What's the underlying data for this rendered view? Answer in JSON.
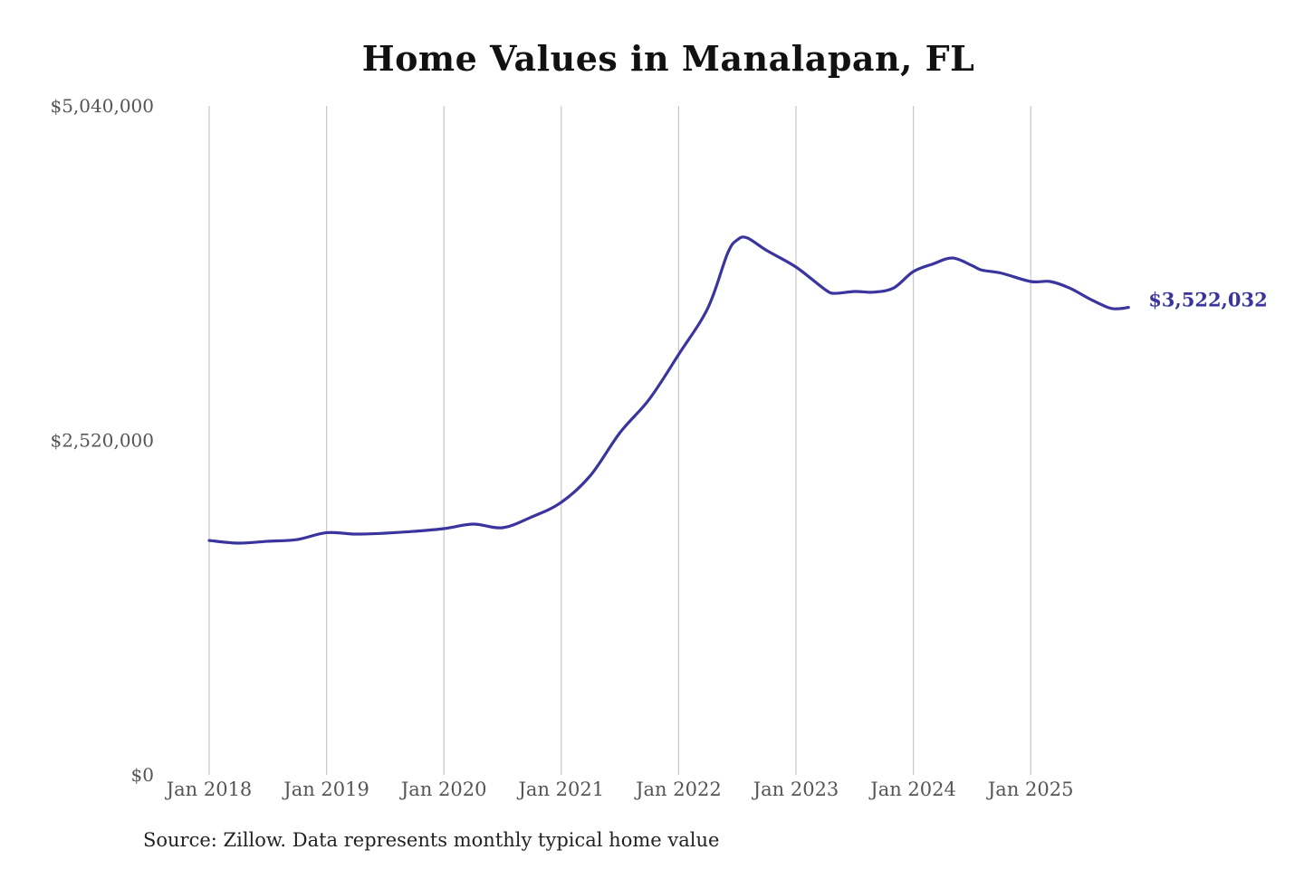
{
  "chart_data": {
    "type": "line",
    "title": "Home Values in Manalapan, FL",
    "source": "Source: Zillow. Data represents monthly typical home value",
    "xlabel": "",
    "ylabel": "",
    "ylim": [
      0,
      5040000
    ],
    "y_ticks": [
      {
        "value": 0,
        "label": "$0"
      },
      {
        "value": 2520000,
        "label": "$2,520,000"
      },
      {
        "value": 5040000,
        "label": "$5,040,000"
      }
    ],
    "x_ticks": [
      {
        "date": "2018-01",
        "label": "Jan 2018"
      },
      {
        "date": "2019-01",
        "label": "Jan 2019"
      },
      {
        "date": "2020-01",
        "label": "Jan 2020"
      },
      {
        "date": "2021-01",
        "label": "Jan 2021"
      },
      {
        "date": "2022-01",
        "label": "Jan 2022"
      },
      {
        "date": "2023-01",
        "label": "Jan 2023"
      },
      {
        "date": "2024-01",
        "label": "Jan 2024"
      },
      {
        "date": "2025-01",
        "label": "Jan 2025"
      }
    ],
    "grid": "vertical lines at year ticks",
    "line_color": "#3a349e",
    "end_label": "$3,522,032",
    "series": [
      {
        "points": [
          [
            "2018-01",
            1766000
          ],
          [
            "2018-04",
            1746000
          ],
          [
            "2018-07",
            1760000
          ],
          [
            "2018-10",
            1773000
          ],
          [
            "2019-01",
            1825000
          ],
          [
            "2019-04",
            1814000
          ],
          [
            "2019-07",
            1821000
          ],
          [
            "2019-10",
            1835000
          ],
          [
            "2020-01",
            1855000
          ],
          [
            "2020-04",
            1889000
          ],
          [
            "2020-07",
            1862000
          ],
          [
            "2020-10",
            1944000
          ],
          [
            "2021-01",
            2053000
          ],
          [
            "2021-04",
            2257000
          ],
          [
            "2021-07",
            2578000
          ],
          [
            "2021-10",
            2830000
          ],
          [
            "2022-01",
            3167000
          ],
          [
            "2022-04",
            3519000
          ],
          [
            "2022-06",
            3928000
          ],
          [
            "2022-07",
            4031000
          ],
          [
            "2022-08",
            4046000
          ],
          [
            "2022-10",
            3951000
          ],
          [
            "2023-01",
            3826000
          ],
          [
            "2023-04",
            3655000
          ],
          [
            "2023-05",
            3628000
          ],
          [
            "2023-07",
            3642000
          ],
          [
            "2023-09",
            3637000
          ],
          [
            "2023-11",
            3669000
          ],
          [
            "2024-01",
            3792000
          ],
          [
            "2024-03",
            3849000
          ],
          [
            "2024-05",
            3894000
          ],
          [
            "2024-07",
            3837000
          ],
          [
            "2024-08",
            3803000
          ],
          [
            "2024-10",
            3780000
          ],
          [
            "2025-01",
            3717000
          ],
          [
            "2025-03",
            3717000
          ],
          [
            "2025-05",
            3667000
          ],
          [
            "2025-07",
            3587000
          ],
          [
            "2025-09",
            3519000
          ],
          [
            "2025-10",
            3512000
          ],
          [
            "2025-11",
            3522032
          ]
        ]
      }
    ]
  }
}
